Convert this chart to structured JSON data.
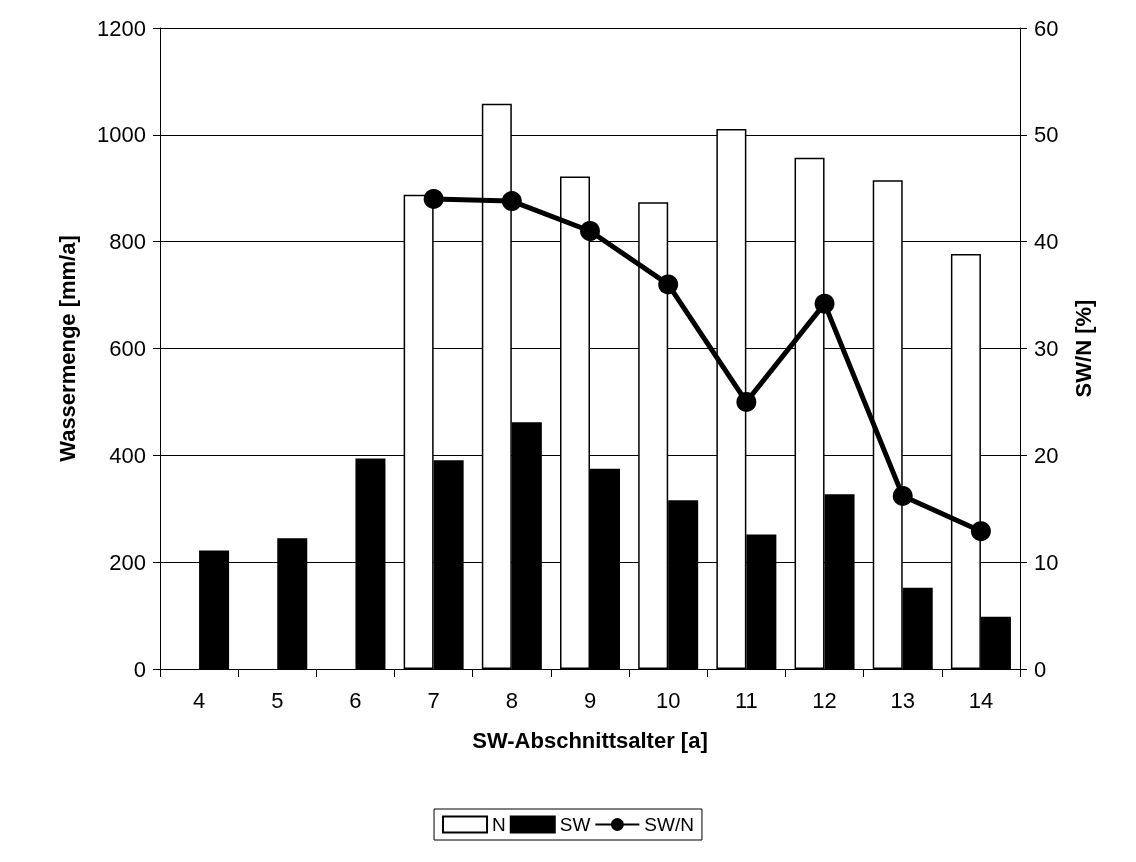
{
  "chart_data": {
    "type": "bar",
    "xlabel": "SW-Abschnittsalter [a]",
    "ylabel": "Wassermenge [mm/a]",
    "y2label": "SW/N [%]",
    "categories": [
      "4",
      "5",
      "6",
      "7",
      "8",
      "9",
      "10",
      "11",
      "12",
      "13",
      "14"
    ],
    "series": [
      {
        "name": "N",
        "color": "#ffffff",
        "values": [
          null,
          null,
          null,
          888,
          1058,
          922,
          874,
          1011,
          957,
          915,
          777
        ]
      },
      {
        "name": "SW",
        "color": "#000000",
        "values": [
          222,
          245,
          394,
          391,
          462,
          375,
          316,
          252,
          327,
          152,
          98
        ]
      },
      {
        "name": "SW/N",
        "type": "line",
        "axis": "y2",
        "color": "#000000",
        "values": [
          null,
          null,
          null,
          44,
          43.8,
          41,
          36,
          25,
          34.2,
          16.2,
          12.9
        ]
      }
    ],
    "ylim": [
      0,
      1200
    ],
    "yticks": [
      0,
      200,
      400,
      600,
      800,
      1000,
      1200
    ],
    "y2lim": [
      0,
      60
    ],
    "y2ticks": [
      0,
      10,
      20,
      30,
      40,
      50,
      60
    ],
    "grid": "y",
    "legend": "bottom",
    "marker": "circle",
    "line_style": "solid"
  }
}
